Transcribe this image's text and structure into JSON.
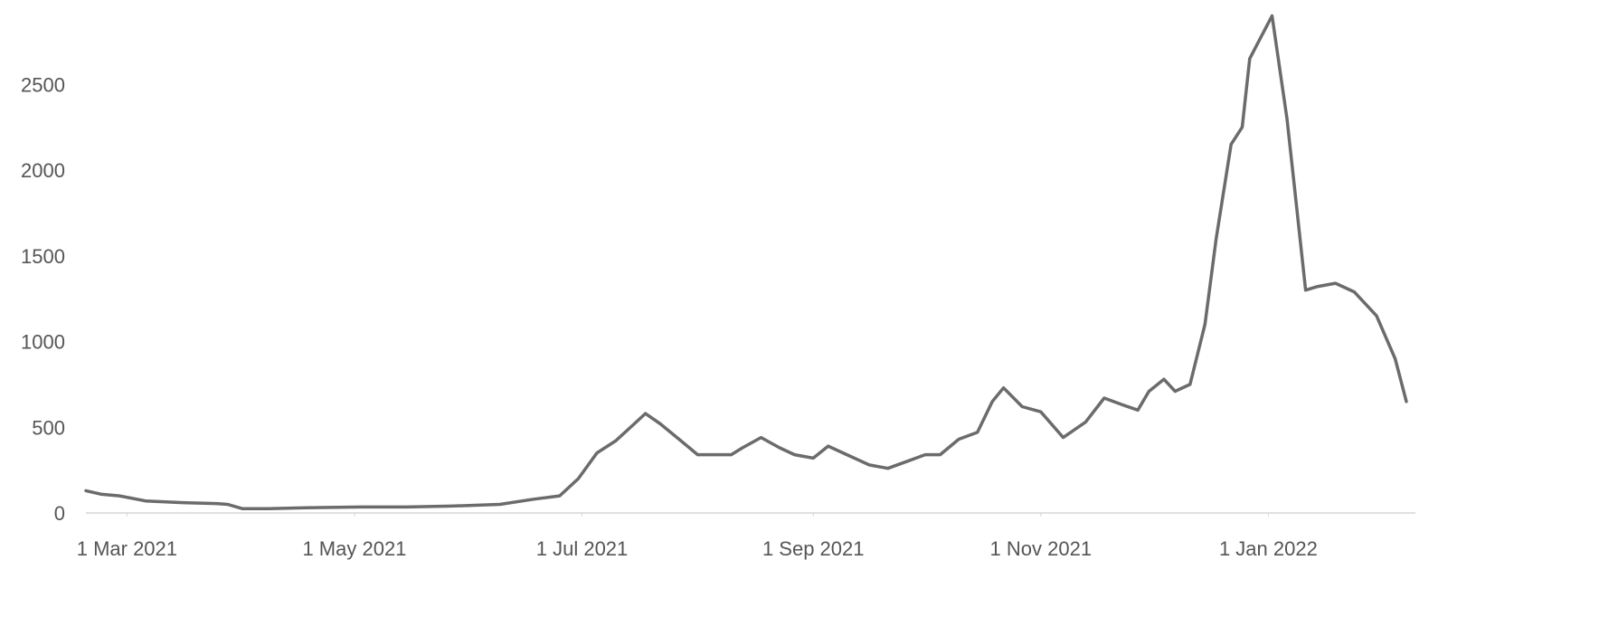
{
  "chart_data": {
    "type": "line",
    "color": "#6b6b6b",
    "x": [
      "2021-02-18",
      "2021-02-22",
      "2021-02-27",
      "2021-03-06",
      "2021-03-16",
      "2021-03-25",
      "2021-03-28",
      "2021-04-01",
      "2021-04-08",
      "2021-04-18",
      "2021-05-03",
      "2021-05-15",
      "2021-05-27",
      "2021-06-09",
      "2021-06-18",
      "2021-06-25",
      "2021-06-30",
      "2021-07-05",
      "2021-07-10",
      "2021-07-15",
      "2021-07-18",
      "2021-07-22",
      "2021-07-27",
      "2021-08-01",
      "2021-08-06",
      "2021-08-10",
      "2021-08-13",
      "2021-08-18",
      "2021-08-23",
      "2021-08-27",
      "2021-09-01",
      "2021-09-05",
      "2021-09-10",
      "2021-09-16",
      "2021-09-21",
      "2021-09-26",
      "2021-10-01",
      "2021-10-05",
      "2021-10-10",
      "2021-10-15",
      "2021-10-19",
      "2021-10-22",
      "2021-10-27",
      "2021-11-01",
      "2021-11-07",
      "2021-11-13",
      "2021-11-18",
      "2021-11-23",
      "2021-11-27",
      "2021-11-30",
      "2021-12-04",
      "2021-12-07",
      "2021-12-11",
      "2021-12-15",
      "2021-12-18",
      "2021-12-22",
      "2021-12-25",
      "2021-12-27",
      "2022-01-02",
      "2022-01-06",
      "2022-01-08",
      "2022-01-11",
      "2022-01-14",
      "2022-01-19",
      "2022-01-24",
      "2022-01-30",
      "2022-02-04",
      "2022-02-07"
    ],
    "values": [
      130,
      110,
      100,
      70,
      60,
      55,
      50,
      25,
      25,
      30,
      35,
      35,
      40,
      50,
      80,
      100,
      200,
      350,
      420,
      520,
      580,
      520,
      430,
      340,
      340,
      340,
      380,
      440,
      380,
      340,
      320,
      390,
      340,
      280,
      260,
      300,
      340,
      340,
      430,
      470,
      650,
      730,
      620,
      590,
      440,
      530,
      670,
      630,
      600,
      710,
      780,
      710,
      750,
      1100,
      1600,
      2150,
      2250,
      2650,
      2900,
      2300,
      1900,
      1300,
      1320,
      1340,
      1290,
      1150,
      900,
      650
    ],
    "xlim": [
      "2021-02-18",
      "2022-02-07"
    ],
    "xticks": [
      {
        "value": "2021-03-01",
        "label": "1 Mar 2021"
      },
      {
        "value": "2021-05-01",
        "label": "1 May 2021"
      },
      {
        "value": "2021-07-01",
        "label": "1 Jul 2021"
      },
      {
        "value": "2021-09-01",
        "label": "1 Sep 2021"
      },
      {
        "value": "2021-11-01",
        "label": "1 Nov 2021"
      },
      {
        "value": "2022-01-01",
        "label": "1 Jan 2022"
      }
    ],
    "ylim": [
      0,
      2950
    ],
    "yticks": [
      0,
      500,
      1000,
      1500,
      2000,
      2500
    ],
    "grid": false
  }
}
